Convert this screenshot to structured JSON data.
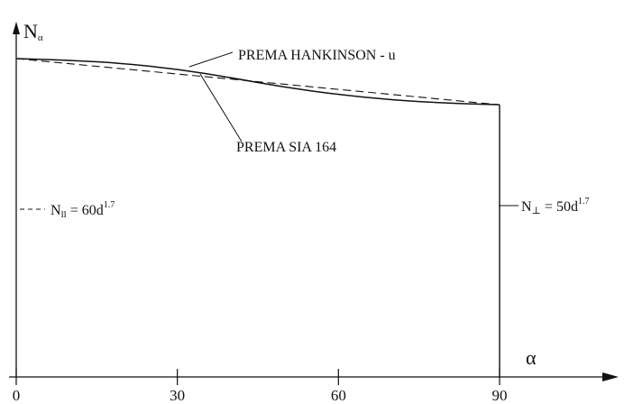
{
  "chart_data": {
    "type": "line",
    "title": "",
    "xlabel": "α",
    "ylabel": "Nα",
    "ylabel_main": "N",
    "ylabel_sub": "α",
    "x_ticks": [
      "0",
      "30",
      "60",
      "90"
    ],
    "xlim": [
      0,
      90
    ],
    "ylim": [
      0,
      1.1
    ],
    "grid": false,
    "series": [
      {
        "name": "PREMA HANKINSON - u",
        "style": "solid",
        "x": [
          0,
          10,
          20,
          30,
          40,
          50,
          60,
          70,
          80,
          90
        ],
        "y": [
          1.0,
          0.995,
          0.985,
          0.967,
          0.94,
          0.91,
          0.887,
          0.87,
          0.86,
          0.855
        ]
      },
      {
        "name": "PREMA SIA 164",
        "style": "dashed",
        "x": [
          0,
          90
        ],
        "y": [
          1.0,
          0.855
        ]
      }
    ],
    "annotations": {
      "hankinson": "PREMA HANKINSON - u",
      "sia": "PREMA SIA 164",
      "n_parallel": {
        "prefix": "N",
        "subscript": "ll",
        "eq": " = 60d",
        "exp": "1.7"
      },
      "n_perp": {
        "prefix": "N",
        "subscript": "⊥",
        "eq": " = 50d",
        "exp": "1.7"
      }
    }
  }
}
